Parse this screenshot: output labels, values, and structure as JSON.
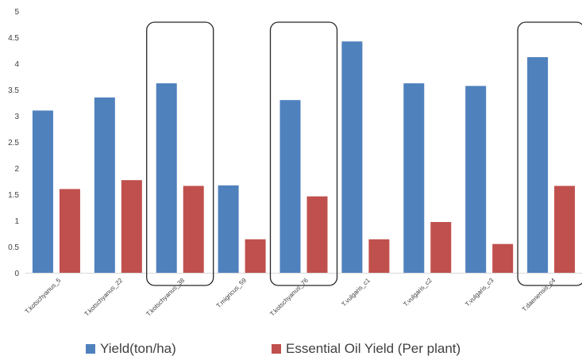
{
  "chart_data": {
    "type": "bar",
    "categories": [
      "T.kotschyanus_5",
      "T.kotschyanus_22",
      "T.kotschyanus_38",
      "T.migricus_59",
      "T.kotschyanus_76",
      "T.vulgaris_c1",
      "T.vulgaris_c2",
      "T.vulgaris_c3",
      "T.daenensis_c4"
    ],
    "series": [
      {
        "name": "Yield(ton/ha)",
        "color": "#4f81bd",
        "values": [
          3.1,
          3.35,
          3.62,
          1.67,
          3.3,
          4.42,
          3.62,
          3.57,
          4.12
        ]
      },
      {
        "name": "Essential Oil Yield (Per plant)",
        "color": "#c0504d",
        "values": [
          1.6,
          1.77,
          1.66,
          0.64,
          1.46,
          0.64,
          0.97,
          0.55,
          1.66
        ]
      }
    ],
    "ylim": [
      0,
      5
    ],
    "yticks": [
      "0",
      "0.5",
      "1",
      "1.5",
      "2",
      "2.5",
      "3",
      "3.5",
      "4",
      "4.5",
      "5"
    ],
    "highlighted_categories": [
      "T.kotschyanus_38",
      "T.kotschyanus_76",
      "T.daenensis_c4"
    ],
    "grid": false,
    "legend_position": "bottom"
  }
}
